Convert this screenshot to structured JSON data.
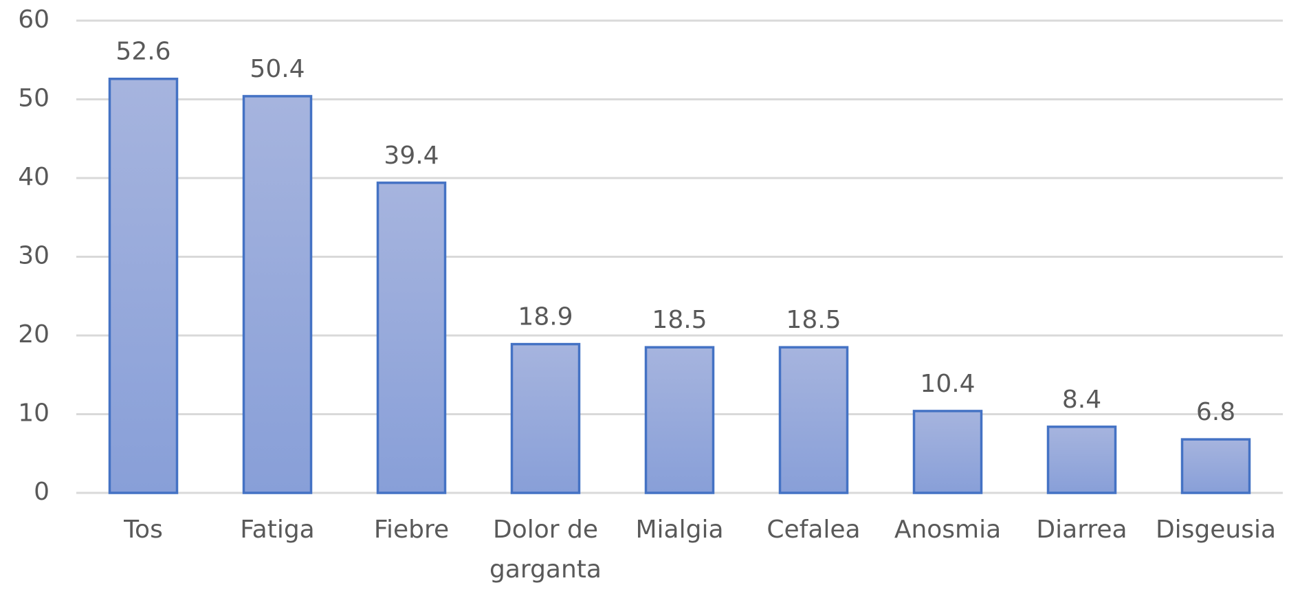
{
  "chart_data": {
    "type": "bar",
    "categories": [
      "Tos",
      "Fatiga",
      "Fiebre",
      "Dolor de garganta",
      "Mialgia",
      "Cefalea",
      "Anosmia",
      "Diarrea",
      "Disgeusia"
    ],
    "values": [
      52.6,
      50.4,
      39.4,
      18.9,
      18.5,
      18.5,
      10.4,
      8.4,
      6.8
    ],
    "color": "#4472c4",
    "ylim": [
      0,
      60
    ],
    "yticks": [
      0,
      10,
      20,
      30,
      40,
      50,
      60
    ],
    "grid": true
  }
}
